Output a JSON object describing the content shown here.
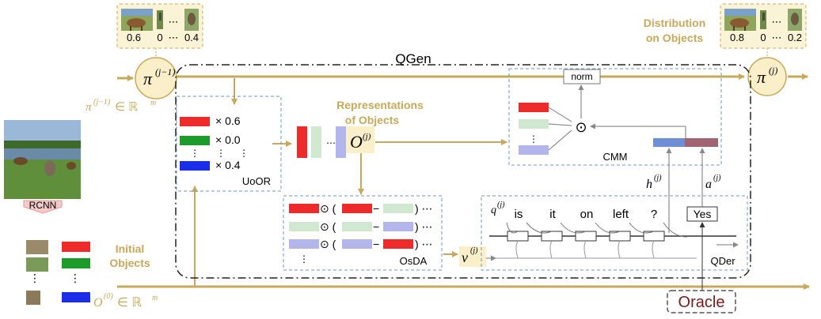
{
  "colors": {
    "gold": "#c8a85a",
    "gold_fill": "#faefc8",
    "blue_dash": "#6f97c2",
    "red": "#ee2a2a",
    "green": "#1c9a2a",
    "blue": "#1a2de8",
    "light_green": "#cfe8cf",
    "light_purple": "#b3b6ea",
    "bar_blue": "#6e8fd6",
    "bar_maroon": "#a16472",
    "oracle": "#7a1a1a"
  },
  "pi_prev": {
    "symbol": "π",
    "superscript": "(j−1)",
    "probs": [
      "0.6",
      "0",
      "0.4"
    ],
    "ellipsis": "⋯",
    "domain_text": "π",
    "domain_sup": "(j−1)",
    "domain_tail": " ∈ ℝ",
    "domain_exp": "m"
  },
  "pi_next": {
    "symbol": "π",
    "superscript": "(j)",
    "probs": [
      "0.8",
      "0",
      "0.2"
    ],
    "ellipsis": "⋯"
  },
  "labels": {
    "qgen": "QGen",
    "distribution_line1": "Distribution",
    "distribution_line2": "on Objects",
    "representations_line1": "Representations",
    "representations_line2": "of Objects",
    "initial_line1": "Initial",
    "initial_line2": "Objects",
    "rcnn": "RCNN",
    "uoor": "UoOR",
    "osda": "OsDA",
    "cmm": "CMM",
    "qder": "QDer",
    "norm": "norm",
    "odot": "⊙",
    "oracle": "Oracle",
    "yes": "Yes"
  },
  "uoor": {
    "weights": [
      "× 0.6",
      "× 0.0",
      "× 0.4"
    ],
    "vdots": "⋮"
  },
  "math": {
    "O": "O",
    "O_sup": "(j)",
    "O0": "O",
    "O0_sup": "(0)",
    "O0_tail": " ∈ ℝ",
    "O0_exp": "m",
    "v": "v",
    "v_sup": "(j)",
    "h": "h",
    "h_sup": "(j)",
    "a": "a",
    "a_sup": "(j)",
    "q": "q",
    "q_sup": "(j)"
  },
  "osda_rows": [
    {
      "op": "⊙ (",
      "minus": "−",
      "close": ") ⋯"
    },
    {
      "op": "⊙ (",
      "minus": "−",
      "close": ") ⋯"
    },
    {
      "op": "⊙ (",
      "minus": "−",
      "close": ") ⋯"
    }
  ],
  "question_tokens": [
    "is",
    "it",
    "on",
    "left",
    "?"
  ]
}
